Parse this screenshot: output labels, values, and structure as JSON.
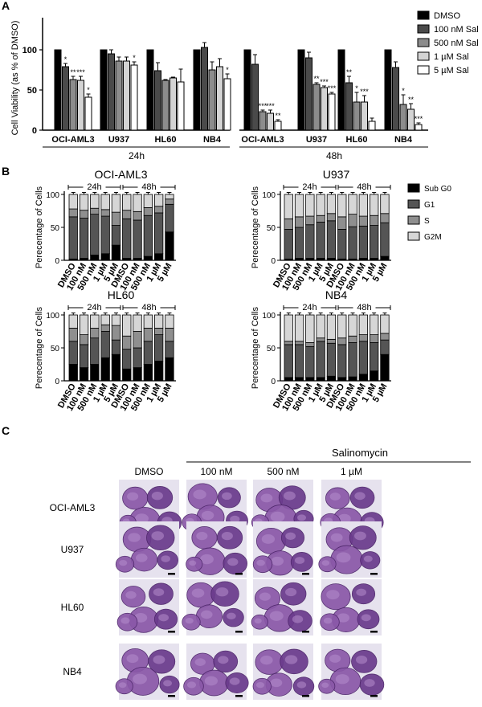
{
  "panel_letters": [
    "A",
    "B",
    "C"
  ],
  "colors": {
    "DMSO": "#000000",
    "100 nM Sal": "#4a4a4a",
    "500 nM Sal": "#8c8c8c",
    "1 µM Sal": "#d4d4d4",
    "5 µM Sal": "#ffffff",
    "Sub G0": "#000000",
    "G1": "#555555",
    "S": "#8f8f8f",
    "G2M": "#d6d6d6"
  },
  "chart_data": [
    {
      "panel": "A",
      "type": "bar",
      "ylabel": "Cell Viability (as % of DMSO)",
      "yticks": [
        0,
        50,
        100
      ],
      "ylim": [
        0,
        130
      ],
      "legend_position": "right",
      "groups": [
        {
          "name": "OCI-AML3",
          "time": "24h",
          "values": [
            100,
            79,
            63,
            62,
            41
          ],
          "errors": [
            0,
            4,
            4,
            5,
            4
          ],
          "sig": [
            "",
            "*",
            "**",
            "***",
            "*"
          ]
        },
        {
          "name": "U937",
          "time": "24h",
          "values": [
            100,
            95,
            86,
            86,
            81
          ],
          "errors": [
            0,
            5,
            5,
            5,
            4
          ],
          "sig": [
            "",
            "",
            "",
            "",
            "*"
          ]
        },
        {
          "name": "HL60",
          "time": "24h",
          "values": [
            100,
            74,
            62,
            65,
            60
          ],
          "errors": [
            0,
            10,
            1,
            1,
            16
          ],
          "sig": [
            "",
            "",
            "",
            "",
            ""
          ]
        },
        {
          "name": "NB4",
          "time": "24h",
          "values": [
            100,
            103,
            75,
            79,
            64
          ],
          "errors": [
            0,
            6,
            10,
            10,
            6
          ],
          "sig": [
            "",
            "",
            "",
            "",
            "*"
          ]
        },
        {
          "name": "OCI-AML3",
          "time": "48h",
          "values": [
            100,
            82,
            23,
            21,
            11
          ],
          "errors": [
            0,
            12,
            2,
            4,
            2
          ],
          "sig": [
            "",
            "",
            "***",
            "***",
            "**"
          ]
        },
        {
          "name": "U937",
          "time": "48h",
          "values": [
            100,
            90,
            57,
            53,
            45
          ],
          "errors": [
            0,
            7,
            2,
            2,
            2
          ],
          "sig": [
            "",
            "",
            "**",
            "***",
            "***"
          ]
        },
        {
          "name": "HL60",
          "time": "48h",
          "values": [
            100,
            59,
            35,
            35,
            11
          ],
          "errors": [
            0,
            8,
            12,
            8,
            4
          ],
          "sig": [
            "",
            "**",
            "*",
            "***",
            ""
          ]
        },
        {
          "name": "NB4",
          "time": "48h",
          "values": [
            100,
            78,
            32,
            26,
            7
          ],
          "errors": [
            0,
            7,
            12,
            7,
            2
          ],
          "sig": [
            "",
            "",
            "*",
            "**",
            "***"
          ]
        }
      ],
      "series": [
        "DMSO",
        "100 nM Sal",
        "500 nM Sal",
        "1 µM Sal",
        "5 µM Sal"
      ],
      "time_labels": [
        "24h",
        "48h"
      ]
    },
    {
      "panel": "B",
      "type": "bar",
      "stacked": true,
      "ylabel": "Perecentage of Cells",
      "yticks": [
        0,
        50,
        100
      ],
      "categories": [
        "DMSO",
        "100 nM",
        "500 nM",
        "1 µM",
        "5 µM",
        "DMSO",
        "100 nM",
        "500 nM",
        "1 µM",
        "5 µM"
      ],
      "time_labels": [
        "24h",
        "48h"
      ],
      "phases": [
        "Sub G0",
        "G1",
        "S",
        "G2M"
      ],
      "legend_position": "right",
      "subplots": [
        {
          "title": "OCI-AML3",
          "stacks": [
            [
              2,
              64,
              12,
              22
            ],
            [
              3,
              61,
              12,
              24
            ],
            [
              8,
              62,
              9,
              21
            ],
            [
              10,
              57,
              10,
              23
            ],
            [
              23,
              30,
              20,
              27
            ],
            [
              3,
              60,
              13,
              24
            ],
            [
              3,
              58,
              13,
              26
            ],
            [
              6,
              62,
              12,
              20
            ],
            [
              10,
              62,
              10,
              18
            ],
            [
              43,
              42,
              8,
              7
            ]
          ]
        },
        {
          "title": "U937",
          "stacks": [
            [
              2,
              45,
              16,
              37
            ],
            [
              3,
              47,
              16,
              34
            ],
            [
              3,
              51,
              13,
              33
            ],
            [
              3,
              55,
              10,
              32
            ],
            [
              3,
              57,
              11,
              29
            ],
            [
              2,
              45,
              19,
              34
            ],
            [
              2,
              49,
              19,
              30
            ],
            [
              3,
              49,
              15,
              33
            ],
            [
              3,
              50,
              15,
              32
            ],
            [
              6,
              51,
              14,
              29
            ]
          ]
        },
        {
          "title": "HL60",
          "stacks": [
            [
              25,
              35,
              20,
              20
            ],
            [
              20,
              35,
              15,
              30
            ],
            [
              25,
              40,
              15,
              20
            ],
            [
              35,
              40,
              10,
              15
            ],
            [
              40,
              22,
              22,
              16
            ],
            [
              18,
              30,
              20,
              32
            ],
            [
              20,
              30,
              25,
              25
            ],
            [
              25,
              35,
              20,
              20
            ],
            [
              30,
              40,
              10,
              20
            ],
            [
              35,
              25,
              20,
              20
            ]
          ]
        },
        {
          "title": "NB4",
          "stacks": [
            [
              5,
              50,
              5,
              40
            ],
            [
              5,
              50,
              5,
              40
            ],
            [
              5,
              47,
              6,
              42
            ],
            [
              5,
              55,
              5,
              35
            ],
            [
              7,
              50,
              6,
              37
            ],
            [
              5,
              50,
              10,
              35
            ],
            [
              6,
              52,
              10,
              32
            ],
            [
              10,
              50,
              10,
              30
            ],
            [
              15,
              43,
              12,
              30
            ],
            [
              40,
              22,
              10,
              28
            ]
          ]
        }
      ]
    }
  ],
  "panel_c": {
    "header": "Salinomycin",
    "columns": [
      "DMSO",
      "100 nM",
      "500 nM",
      "1 µM"
    ],
    "rows": [
      "OCI-AML3",
      "U937",
      "HL60",
      "NB4"
    ]
  }
}
